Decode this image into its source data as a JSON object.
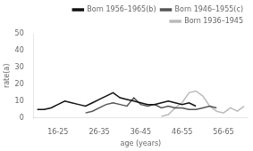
{
  "chart_data": {
    "type": "line",
    "xlabel": "age (years)",
    "ylabel": "rate(a)",
    "categories": [
      null,
      null,
      null,
      "16-25",
      null,
      null,
      null,
      null,
      null,
      "26-35",
      null,
      null,
      null,
      null,
      null,
      "36-45",
      null,
      null,
      null,
      null,
      null,
      "46-55",
      null,
      null,
      null,
      null,
      null,
      "56-65",
      null,
      null,
      null
    ],
    "series": [
      {
        "name": "Born 1956–1965(b)",
        "color": "#111111",
        "values": [
          5,
          5,
          6,
          8,
          10,
          9,
          8,
          7,
          9,
          11,
          13,
          15,
          12,
          11,
          10,
          9,
          8,
          8,
          9,
          10,
          9,
          8,
          9,
          7,
          null,
          null,
          null,
          null,
          null,
          null,
          null
        ]
      },
      {
        "name": "Born 1946–1955(c)",
        "color": "#555555",
        "values": [
          null,
          null,
          null,
          null,
          null,
          null,
          null,
          3,
          4,
          6,
          8,
          9,
          8,
          7,
          12,
          8,
          7,
          8,
          6,
          7,
          6,
          6,
          5,
          5,
          6,
          7,
          6,
          null,
          null,
          null,
          null
        ]
      },
      {
        "name": "Born 1936–1945",
        "color": "#bbbbbb",
        "values": [
          null,
          null,
          null,
          null,
          null,
          null,
          null,
          null,
          null,
          null,
          null,
          null,
          null,
          null,
          null,
          null,
          null,
          null,
          1,
          2,
          6,
          9,
          15,
          16,
          13,
          7,
          4,
          3,
          6,
          4,
          7
        ]
      }
    ],
    "ylim": [
      0,
      50
    ],
    "yticks": [
      0,
      10,
      20,
      30,
      40,
      50
    ],
    "grid": false,
    "legend": "upper right"
  }
}
